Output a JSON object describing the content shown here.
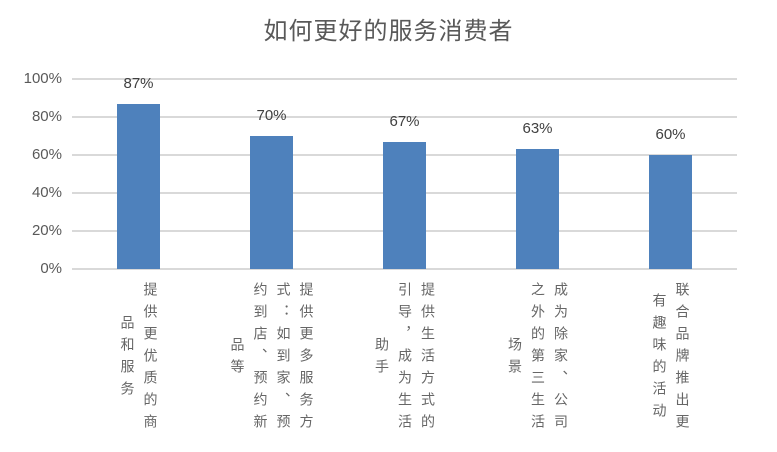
{
  "chart_data": {
    "type": "bar",
    "title": "如何更好的服务消费者",
    "categories": [
      "提供更优质的商品和服务",
      "提供更多服务方式：如到家、预约到店、预约新品等",
      "提供生活方式的引导，成为生活助手",
      "成为除家、公司之外的第三生活场景",
      "联合品牌推出更有趣味的活动"
    ],
    "values": [
      87,
      70,
      67,
      63,
      60
    ],
    "value_labels": [
      "87%",
      "70%",
      "67%",
      "63%",
      "60%"
    ],
    "yticks": [
      0,
      20,
      40,
      60,
      80,
      100
    ],
    "ytick_labels": [
      "0%",
      "20%",
      "40%",
      "60%",
      "80%",
      "100%"
    ],
    "ylim": [
      0,
      100
    ],
    "grid": true,
    "legend": "none",
    "xlabel": "",
    "ylabel": "",
    "colors": {
      "bar": "#4E81BC",
      "gridline": "#D9D9D9",
      "axis_line": "#D9D9D9",
      "tick_label": "#595959",
      "category_label": "#666666",
      "value_label": "#404040",
      "title": "#595959",
      "background": "#FFFFFF"
    }
  }
}
